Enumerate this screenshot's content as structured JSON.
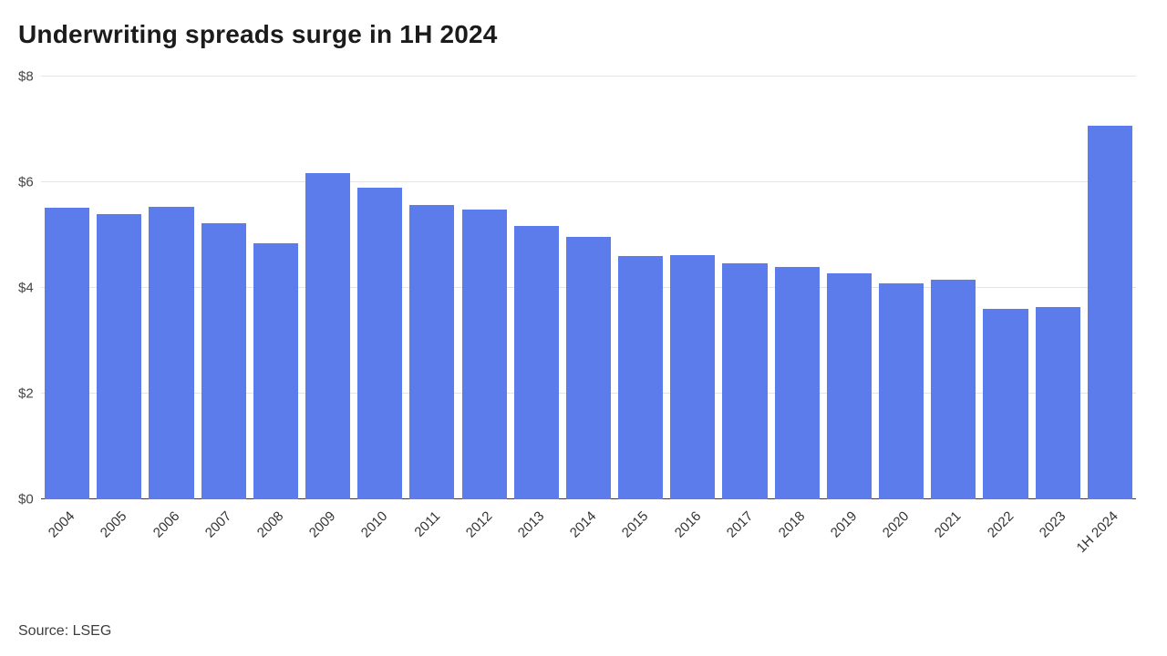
{
  "header": {
    "title": "Underwriting spreads surge in 1H 2024"
  },
  "footer": {
    "source_label": "Source: LSEG"
  },
  "chart_data": {
    "type": "bar",
    "title": "Underwriting spreads surge in 1H 2024",
    "categories": [
      "2004",
      "2005",
      "2006",
      "2007",
      "2008",
      "2009",
      "2010",
      "2011",
      "2012",
      "2013",
      "2014",
      "2015",
      "2016",
      "2017",
      "2018",
      "2019",
      "2020",
      "2021",
      "2022",
      "2023",
      "1H 2024"
    ],
    "values": [
      5.52,
      5.4,
      5.53,
      5.22,
      4.85,
      6.17,
      5.9,
      5.57,
      5.48,
      5.17,
      4.97,
      4.6,
      4.62,
      4.47,
      4.4,
      4.28,
      4.08,
      4.15,
      3.6,
      3.63,
      7.07
    ],
    "xlabel": "",
    "ylabel": "",
    "ylim": [
      0,
      8
    ],
    "y_tick_values": [
      0,
      2,
      4,
      6,
      8
    ],
    "y_tick_labels": [
      "$0",
      "$2",
      "$4",
      "$6",
      "$8"
    ],
    "grid": true,
    "legend": "none",
    "bar_color": "#5b7cea",
    "axis_label_color": "#444444",
    "gridline_color": "#e4e4e4",
    "baseline_color": "#3a3a3a",
    "x_label_rotation_deg": -45,
    "source": "Source: LSEG"
  }
}
